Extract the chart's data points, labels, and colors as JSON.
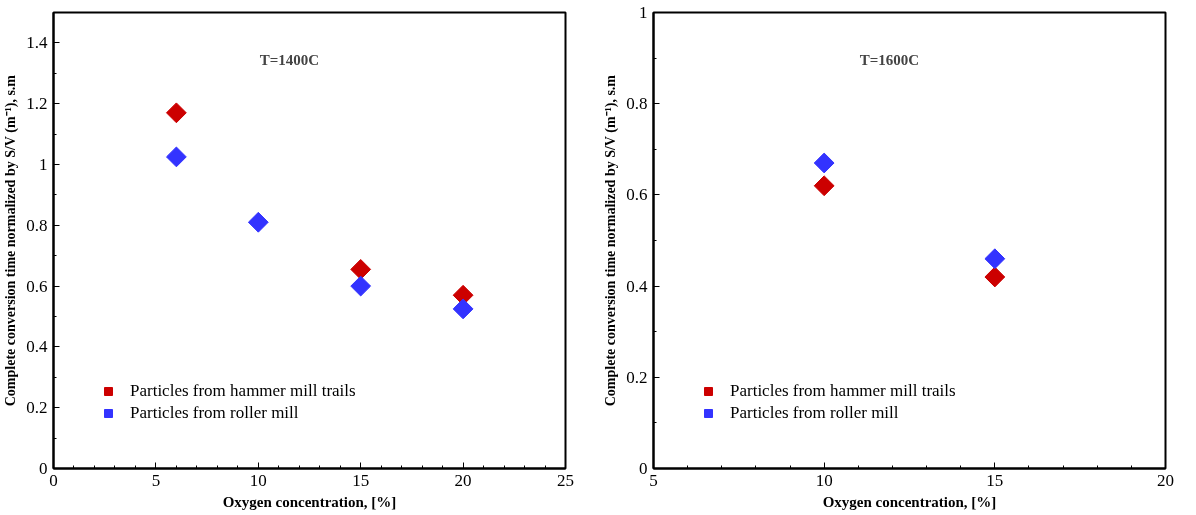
{
  "chart_data": [
    {
      "type": "scatter",
      "xlabel": "Oxygen concentration, [%]",
      "ylabel": "Complete conversion time normalized by S/V (m⁻¹), s.m",
      "annotations": [
        "T=1400C"
      ],
      "x": [
        6,
        10,
        15,
        20
      ],
      "xlim": [
        0,
        25
      ],
      "xticks": [
        0,
        5,
        10,
        15,
        20,
        25
      ],
      "ylim": [
        0,
        1.5
      ],
      "yticks": [
        0,
        0.2,
        0.4,
        0.6,
        0.8,
        1,
        1.2,
        1.4
      ],
      "marker": "diamond",
      "grid": false,
      "legend": "bottom left",
      "series": [
        {
          "name": "Particles from hammer mill trails",
          "color": "#cc0000",
          "values": [
            1.17,
            null,
            0.655,
            0.57
          ]
        },
        {
          "name": "Particles from roller mill",
          "color": "#3333ff",
          "values": [
            1.025,
            0.81,
            0.6,
            0.525
          ]
        }
      ]
    },
    {
      "type": "scatter",
      "xlabel": "Oxygen concentration, [%]",
      "ylabel": "Complete conversion time normalized by S/V (m⁻¹), s.m",
      "annotations": [
        "T=1600C"
      ],
      "x": [
        10,
        15
      ],
      "xlim": [
        5,
        20
      ],
      "xticks": [
        5,
        10,
        15,
        20
      ],
      "ylim": [
        0,
        1
      ],
      "yticks": [
        0,
        0.2,
        0.4,
        0.6,
        0.8,
        1
      ],
      "marker": "diamond",
      "grid": false,
      "legend": "bottom left",
      "series": [
        {
          "name": "Particles from hammer mill trails",
          "color": "#cc0000",
          "values": [
            0.62,
            0.42
          ]
        },
        {
          "name": "Particles from roller mill",
          "color": "#3333ff",
          "values": [
            0.67,
            0.46
          ]
        }
      ]
    }
  ]
}
